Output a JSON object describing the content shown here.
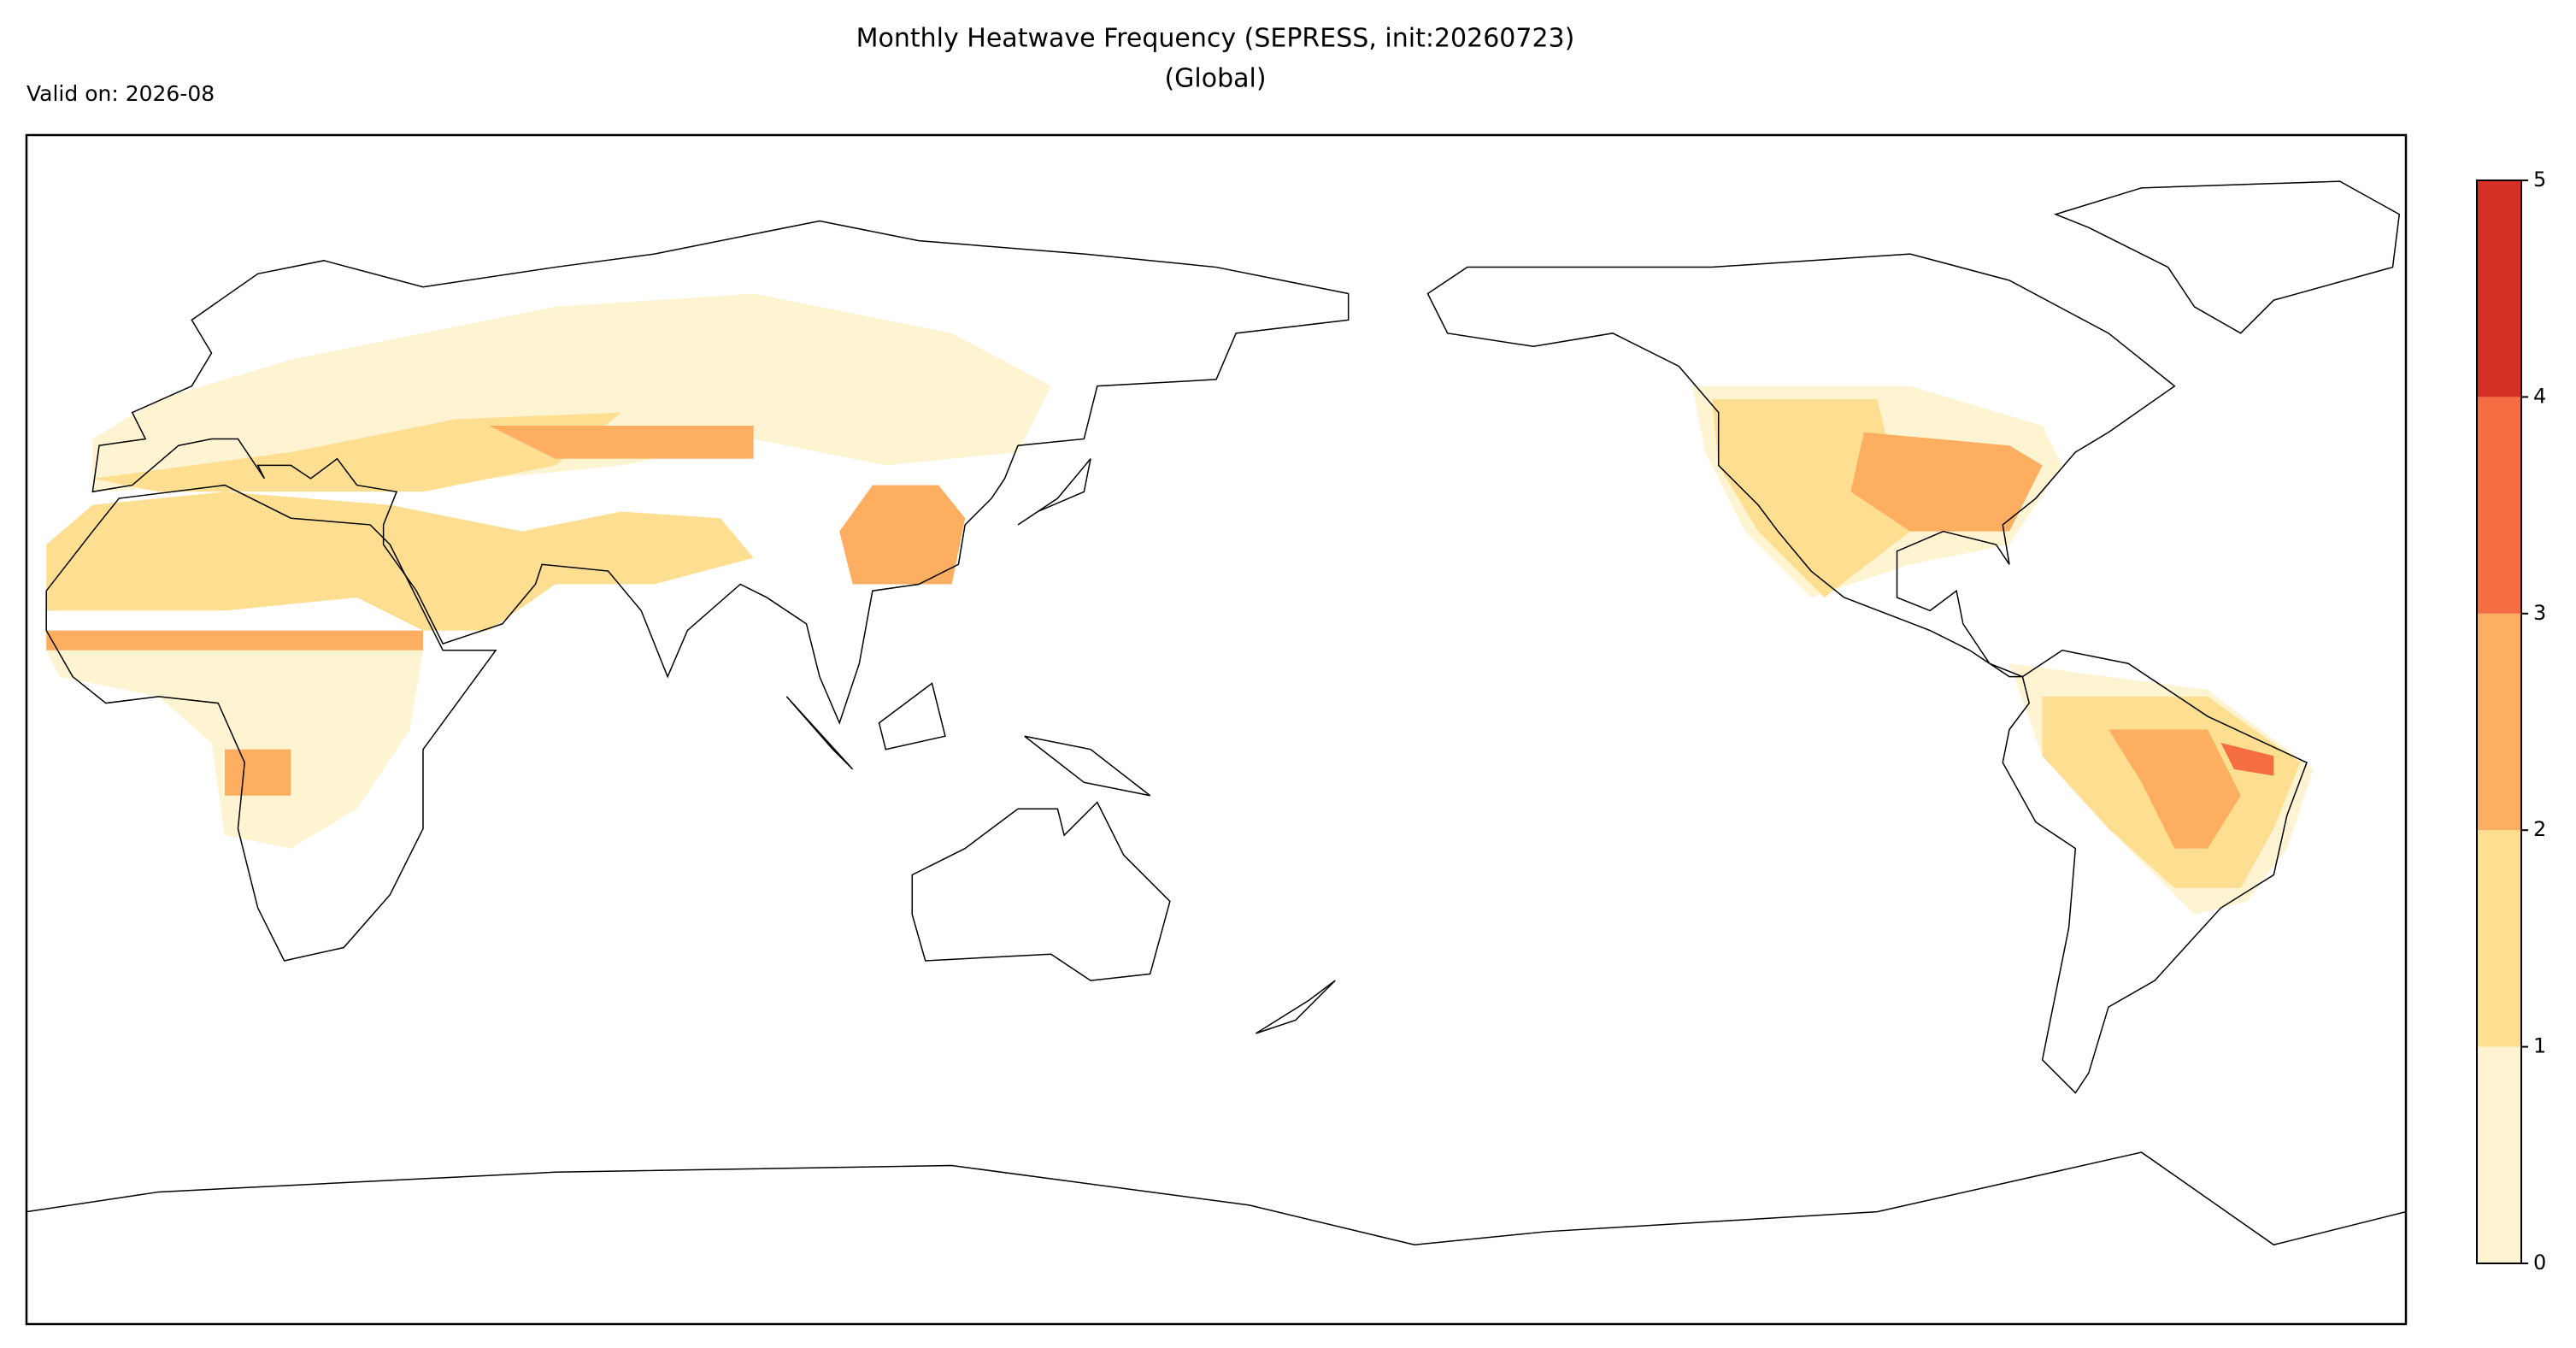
{
  "header": {
    "title": "Monthly Heatwave Frequency (SEPRESS, init:20260723)",
    "subtitle": "(Global)",
    "valid": "Valid on: 2026-08"
  },
  "colorbar": {
    "ticks": [
      0,
      1,
      2,
      3,
      4,
      5
    ],
    "colors": [
      "#fef4d2",
      "#fedf92",
      "#fdae61",
      "#f46d43",
      "#d73027"
    ]
  }
}
